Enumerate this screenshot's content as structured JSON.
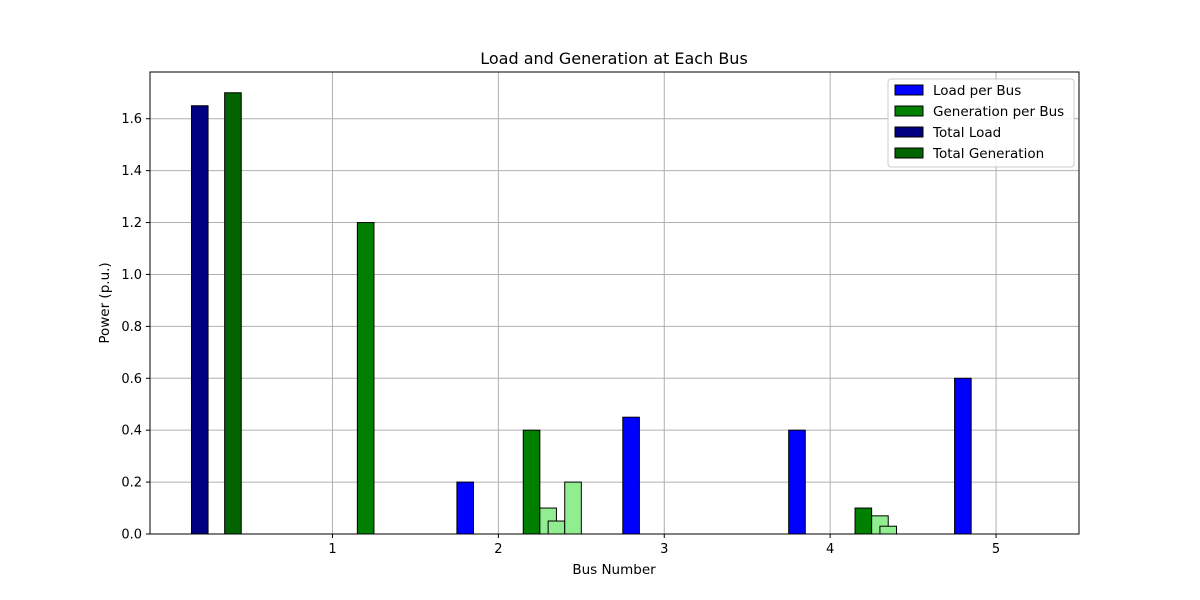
{
  "chart_data": {
    "type": "bar",
    "title": "Load and Generation at Each Bus",
    "xlabel": "Bus Number",
    "ylabel": "Power (p.u.)",
    "xlim": [
      -0.1,
      5.5
    ],
    "ylim": [
      0,
      1.78
    ],
    "x_ticks": [
      1,
      2,
      3,
      4,
      5
    ],
    "y_ticks": [
      0.0,
      0.2,
      0.4,
      0.6,
      0.8,
      1.0,
      1.2,
      1.4,
      1.6
    ],
    "grid": true,
    "legend_position": "top-right",
    "bar_width": 0.1,
    "series": [
      {
        "name": "Load per Bus",
        "color": "#0000ff",
        "x": [
          0.8,
          1.8,
          2.8,
          3.8,
          4.8
        ],
        "values": [
          0.0,
          0.2,
          0.45,
          0.4,
          0.6
        ]
      },
      {
        "name": "Generation per Bus",
        "color": "#008000",
        "x": [
          1.2,
          2.2,
          3.2,
          4.2,
          5.2
        ],
        "values": [
          1.2,
          0.4,
          0.0,
          0.1,
          0.0
        ]
      },
      {
        "name": "Total Load",
        "color": "#000080",
        "x": [
          0.2
        ],
        "values": [
          1.65
        ]
      },
      {
        "name": "Total Generation",
        "color": "#006400",
        "x": [
          0.4
        ],
        "values": [
          1.7
        ]
      }
    ],
    "generator_bars": {
      "color": "#90ee90",
      "x": [
        2.3,
        2.35,
        2.45,
        4.3,
        4.35
      ],
      "values": [
        0.1,
        0.05,
        0.2,
        0.07,
        0.03
      ]
    }
  }
}
